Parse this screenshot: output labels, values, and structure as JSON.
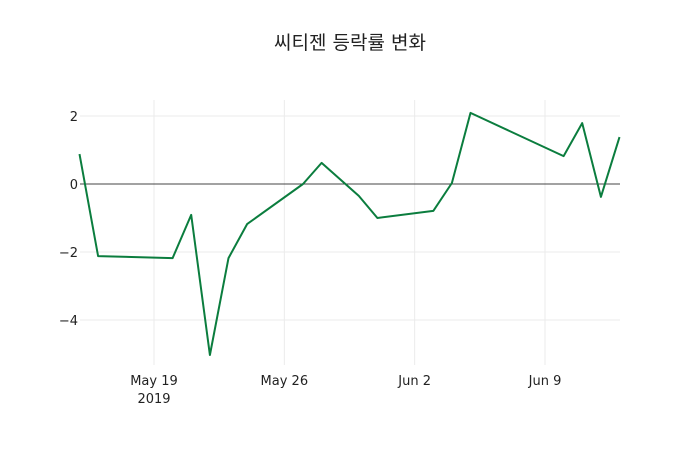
{
  "chart_data": {
    "type": "line",
    "title": "씨티젠 등락률 변화",
    "xlabel": "",
    "ylabel": "",
    "line_color": "#0b7d3e",
    "grid": true,
    "ylim": [
      -5.4,
      2.5
    ],
    "yticks": [
      2,
      0,
      -2,
      -4
    ],
    "ytick_labels": [
      "2",
      "0",
      "−2",
      "−4"
    ],
    "xticks": [
      {
        "date": "2019-05-19",
        "label": "May 19",
        "sublabel": "2019"
      },
      {
        "date": "2019-05-26",
        "label": "May 26",
        "sublabel": ""
      },
      {
        "date": "2019-06-02",
        "label": "Jun 2",
        "sublabel": ""
      },
      {
        "date": "2019-06-09",
        "label": "Jun 9",
        "sublabel": ""
      }
    ],
    "x": [
      "2019-05-15",
      "2019-05-16",
      "2019-05-20",
      "2019-05-21",
      "2019-05-22",
      "2019-05-23",
      "2019-05-24",
      "2019-05-27",
      "2019-05-28",
      "2019-05-30",
      "2019-05-31",
      "2019-06-03",
      "2019-06-04",
      "2019-06-05",
      "2019-06-10",
      "2019-06-11",
      "2019-06-12",
      "2019-06-13"
    ],
    "series": [
      {
        "name": "등락률",
        "values": [
          0.88,
          -2.12,
          -2.18,
          -0.91,
          -5.03,
          -2.18,
          -1.18,
          0.0,
          0.62,
          -0.35,
          -1.0,
          -0.79,
          0.03,
          2.09,
          0.82,
          1.79,
          -0.38,
          1.38
        ]
      }
    ]
  }
}
